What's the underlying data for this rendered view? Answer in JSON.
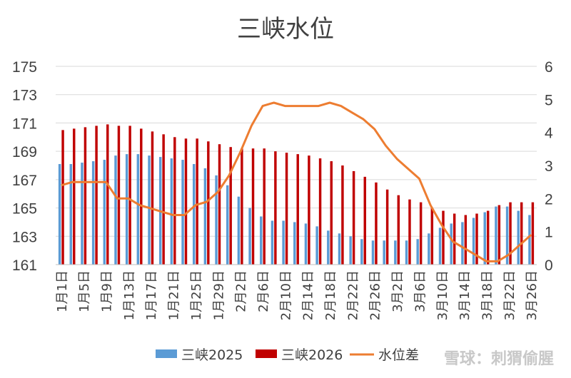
{
  "chart_data": {
    "type": "bar",
    "title": "三峡水位",
    "xlabel": "",
    "ylabel": "",
    "ylim": [
      161,
      175
    ],
    "yticks": [
      161,
      163,
      165,
      167,
      169,
      171,
      173,
      175
    ],
    "y2lim": [
      0,
      6
    ],
    "y2ticks": [
      0,
      1,
      2,
      3,
      4,
      5,
      6
    ],
    "grid": true,
    "legend_position": "bottom",
    "categories": [
      "1月1日",
      "1月3日",
      "1月5日",
      "1月7日",
      "1月9日",
      "1月11日",
      "1月13日",
      "1月15日",
      "1月17日",
      "1月19日",
      "1月21日",
      "1月23日",
      "1月25日",
      "1月27日",
      "1月29日",
      "1月31日",
      "2月2日",
      "2月4日",
      "2月6日",
      "2月8日",
      "2月10日",
      "2月12日",
      "2月14日",
      "2月16日",
      "2月18日",
      "2月20日",
      "2月22日",
      "2月24日",
      "2月26日",
      "2月28日",
      "3月2日",
      "3月4日",
      "3月6日",
      "3月8日",
      "3月10日",
      "3月12日",
      "3月14日",
      "3月16日",
      "3月18日",
      "3月20日",
      "3月22日",
      "3月24日",
      "3月26日"
    ],
    "xticks_shown": [
      "1月1日",
      "1月5日",
      "1月9日",
      "1月13日",
      "1月17日",
      "1月21日",
      "1月25日",
      "1月29日",
      "2月2日",
      "2月6日",
      "2月10日",
      "2月14日",
      "2月18日",
      "2月22日",
      "2月26日",
      "3月2日",
      "3月6日",
      "3月10日",
      "3月14日",
      "3月18日",
      "3月22日",
      "3月26日"
    ],
    "series": [
      {
        "name": "三峡2025",
        "type": "bar",
        "axis": "left",
        "color": "#5B9BD5",
        "values": [
          168.1,
          168.1,
          168.2,
          168.3,
          168.4,
          168.7,
          168.8,
          168.8,
          168.7,
          168.6,
          168.5,
          168.4,
          168.1,
          167.8,
          167.3,
          166.6,
          165.8,
          165.0,
          164.4,
          164.1,
          164.1,
          164.0,
          163.9,
          163.7,
          163.4,
          163.2,
          163.0,
          162.8,
          162.7,
          162.7,
          162.7,
          162.7,
          162.8,
          163.2,
          163.6,
          163.9,
          164.0,
          164.3,
          164.7,
          165.1,
          165.1,
          164.8,
          164.5
        ]
      },
      {
        "name": "三峡2026",
        "type": "bar",
        "axis": "left",
        "color": "#C00000",
        "values": [
          170.5,
          170.6,
          170.7,
          170.8,
          170.9,
          170.8,
          170.8,
          170.6,
          170.4,
          170.2,
          170.0,
          169.9,
          169.9,
          169.7,
          169.5,
          169.3,
          169.2,
          169.2,
          169.2,
          169.0,
          168.9,
          168.8,
          168.7,
          168.5,
          168.3,
          168.0,
          167.6,
          167.2,
          166.8,
          166.3,
          165.9,
          165.6,
          165.4,
          165.0,
          164.8,
          164.6,
          164.5,
          164.6,
          164.8,
          165.2,
          165.4,
          165.4,
          165.4
        ]
      },
      {
        "name": "水位差",
        "type": "line",
        "axis": "right",
        "color": "#ED7D31",
        "values": [
          2.4,
          2.5,
          2.5,
          2.5,
          2.5,
          2.0,
          2.0,
          1.8,
          1.7,
          1.6,
          1.5,
          1.5,
          1.8,
          1.9,
          2.2,
          2.7,
          3.4,
          4.2,
          4.8,
          4.9,
          4.8,
          4.8,
          4.8,
          4.8,
          4.9,
          4.8,
          4.6,
          4.4,
          4.1,
          3.6,
          3.2,
          2.9,
          2.6,
          1.8,
          1.2,
          0.7,
          0.5,
          0.3,
          0.1,
          0.1,
          0.3,
          0.6,
          0.9
        ]
      }
    ]
  },
  "watermark": "雪球：刺猬偷腥"
}
